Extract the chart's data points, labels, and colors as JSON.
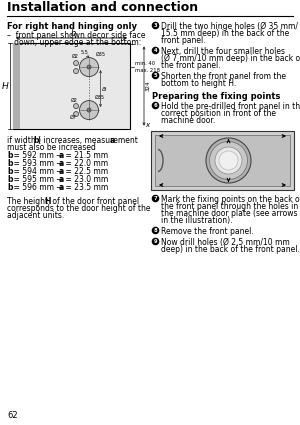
{
  "title": "Installation and connection",
  "bg_color": "#ffffff",
  "page_number": "62",
  "section_heading": "For right hand hinging only",
  "section_sub_line1": "–  front panel shown decor side face",
  "section_sub_line2": "   down, upper edge at the bottom:",
  "measurements": [
    {
      "b": "592",
      "a": "21.5"
    },
    {
      "b": "593",
      "a": "22.0"
    },
    {
      "b": "594",
      "a": "22.5"
    },
    {
      "b": "595",
      "a": "23.0"
    },
    {
      "b": "596",
      "a": "23.5"
    }
  ],
  "body_text_1a": "if width (",
  "body_text_1b": "b",
  "body_text_1c": ") increases, measurement ",
  "body_text_1d": "a",
  "body_text_1e": "",
  "body_text_2": "must also be increased",
  "height_text_1": "The height ",
  "height_text_H": "H",
  "height_text_2": " of the door front panel",
  "height_text_3": "corresponds to the door height of the",
  "height_text_4": "adjacent units.",
  "right_bullets": [
    {
      "num": 3,
      "lines": [
        "Drill the two hinge holes (Ø 35 mm/",
        "15.5 mm deep) in the back of the",
        "front panel."
      ]
    },
    {
      "num": 4,
      "lines": [
        "Next, drill the four smaller holes",
        "(Ø 7 mm/10 mm deep) in the back of",
        "the front panel."
      ]
    },
    {
      "num": 5,
      "lines": [
        "Shorten the front panel from the",
        "bottom to height H."
      ]
    }
  ],
  "prep_heading": "Preparing the fixing points",
  "right_bullets2": [
    {
      "num": 6,
      "lines": [
        "Hold the pre-drilled front panel in the",
        "correct position in front of the",
        "machine door."
      ]
    },
    {
      "num": 7,
      "lines": [
        "Mark the fixing points on the back of",
        "the front panel through the holes in",
        "the machine door plate (see arrows",
        "in the illustration)."
      ]
    },
    {
      "num": 8,
      "lines": [
        "Remove the front panel."
      ]
    },
    {
      "num": 9,
      "lines": [
        "Now drill holes (Ø 2.5 mm/10 mm",
        "deep) in the back of the front panel."
      ]
    }
  ],
  "diagram": {
    "outer_fill": "#e0e0e0",
    "inner_fill": "#d8d8d8",
    "circle_fill": "#c8c8c8",
    "circle_inner_fill": "#e8e8e8"
  },
  "font_family": "sans-serif"
}
